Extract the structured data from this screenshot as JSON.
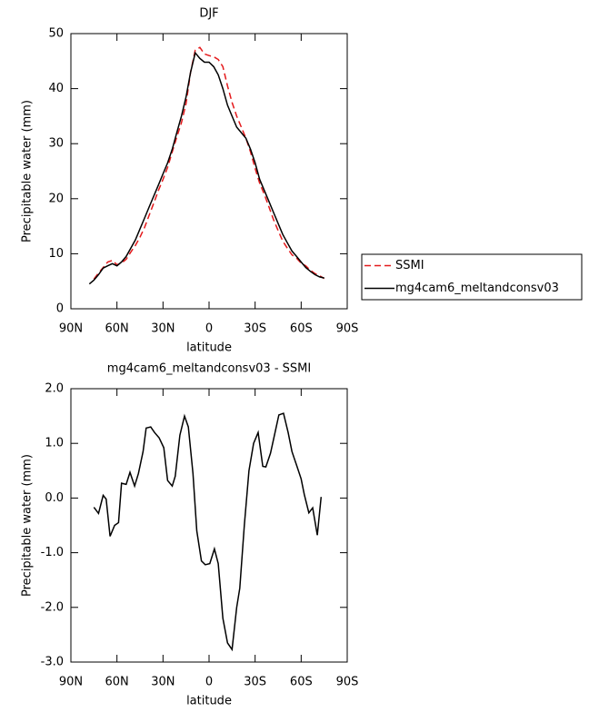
{
  "chart_data": [
    {
      "type": "line",
      "title": "DJF",
      "xlabel": "latitude",
      "ylabel": "Precipitable water (mm)",
      "x": [
        78,
        75,
        72,
        69,
        66,
        63,
        60,
        57,
        54,
        51,
        48,
        45,
        42,
        39,
        36,
        33,
        30,
        27,
        24,
        21,
        18,
        15,
        12,
        9,
        6,
        3,
        0,
        -3,
        -6,
        -9,
        -12,
        -15,
        -18,
        -21,
        -24,
        -27,
        -30,
        -33,
        -36,
        -39,
        -42,
        -45,
        -48,
        -51,
        -54,
        -57,
        -60,
        -63,
        -66,
        -69,
        -72,
        -75
      ],
      "series": [
        {
          "name": "SSMI",
          "color": "#e41a1c",
          "linestyle": "dashed",
          "values": [
            null,
            5.4,
            6.5,
            7.5,
            8.5,
            8.8,
            8,
            8.3,
            9,
            10.3,
            11.5,
            13,
            14.8,
            17,
            19.2,
            21.5,
            23.5,
            25.7,
            28.5,
            31.2,
            33.8,
            37.3,
            43,
            47,
            47.5,
            46.3,
            46,
            45.8,
            45.3,
            44,
            40.5,
            37.5,
            35,
            33,
            31,
            28.5,
            25.5,
            22.8,
            20.8,
            18.5,
            16.2,
            14.2,
            12.3,
            11,
            9.8,
            9.2,
            8.3,
            7.8,
            7,
            6.4,
            6,
            5.5
          ]
        },
        {
          "name": "mg4cam6_meltandconsv03",
          "color": "#000000",
          "linestyle": "solid",
          "values": [
            4.5,
            5.2,
            6.2,
            7.4,
            7.8,
            8.2,
            7.8,
            8.5,
            9.5,
            11,
            12.5,
            14.5,
            16.5,
            18.5,
            20.5,
            22.5,
            24.5,
            26.5,
            29,
            32,
            35,
            38.5,
            43,
            46.5,
            45.5,
            44.8,
            44.8,
            44,
            42.5,
            40,
            37,
            35,
            33,
            32,
            31,
            29,
            26.5,
            23.5,
            21.5,
            19.5,
            17.5,
            15.5,
            13.5,
            12,
            10.5,
            9.5,
            8.5,
            7.5,
            6.8,
            6.2,
            5.8,
            5.6
          ]
        }
      ],
      "xlim": [
        90,
        -90
      ],
      "xticks": [
        {
          "value": 90,
          "label": "90N"
        },
        {
          "value": 60,
          "label": "60N"
        },
        {
          "value": 30,
          "label": "30N"
        },
        0,
        {
          "value": -30,
          "label": "30S"
        },
        {
          "value": -60,
          "label": "60S"
        },
        {
          "value": -90,
          "label": "90S"
        }
      ],
      "ylim": [
        0,
        50
      ],
      "yticks": [
        0,
        10,
        20,
        30,
        40,
        50
      ],
      "legend": "outside right"
    },
    {
      "type": "line",
      "title": "mg4cam6_meltandconsv03 - SSMI",
      "xlabel": "latitude",
      "ylabel": "Precipitable water (mm)",
      "x": [
        75,
        72,
        69,
        67,
        64.5,
        61.5,
        59,
        57,
        54,
        51.5,
        48.5,
        46,
        43,
        41,
        38,
        35.5,
        32.5,
        29.5,
        27,
        24,
        22,
        19,
        16,
        13.5,
        10.5,
        8,
        5,
        2.5,
        -0.5,
        -3.5,
        -6,
        -9,
        -12,
        -15,
        -18,
        -20,
        -23,
        -26,
        -29,
        -32,
        -35,
        -37,
        -40,
        -43,
        -45.5,
        -48.5,
        -51.5,
        -54,
        -57,
        -60,
        -62,
        -65,
        -67.5,
        -70.5,
        -73
      ],
      "values": [
        -0.17,
        -0.28,
        0.05,
        -0.02,
        -0.7,
        -0.5,
        -0.45,
        0.27,
        0.25,
        0.47,
        0.22,
        0.45,
        0.85,
        1.28,
        1.3,
        1.2,
        1.1,
        0.92,
        0.32,
        0.22,
        0.4,
        1.15,
        1.5,
        1.3,
        0.45,
        -0.6,
        -1.15,
        -1.22,
        -1.2,
        -0.93,
        -1.2,
        -2.2,
        -2.65,
        -2.77,
        -2,
        -1.65,
        -0.5,
        0.5,
        1,
        1.2,
        0.58,
        0.57,
        0.82,
        1.2,
        1.52,
        1.55,
        1.2,
        0.85,
        0.6,
        0.35,
        0.07,
        -0.27,
        -0.18,
        -0.68,
        0.02
      ],
      "color": "#000000",
      "xlim": [
        90,
        -90
      ],
      "xticks": [
        {
          "value": 90,
          "label": "90N"
        },
        {
          "value": 60,
          "label": "60N"
        },
        {
          "value": 30,
          "label": "30N"
        },
        0,
        {
          "value": -30,
          "label": "30S"
        },
        {
          "value": -60,
          "label": "60S"
        },
        {
          "value": -90,
          "label": "90S"
        }
      ],
      "ylim": [
        -3,
        2
      ],
      "yticks": [
        {
          "value": -3,
          "label": "-3.0"
        },
        {
          "value": -2,
          "label": "-2.0"
        },
        {
          "value": -1,
          "label": "-1.0"
        },
        {
          "value": 0,
          "label": "0.0"
        },
        {
          "value": 1,
          "label": "1.0"
        },
        {
          "value": 2,
          "label": "2.0"
        }
      ]
    }
  ]
}
